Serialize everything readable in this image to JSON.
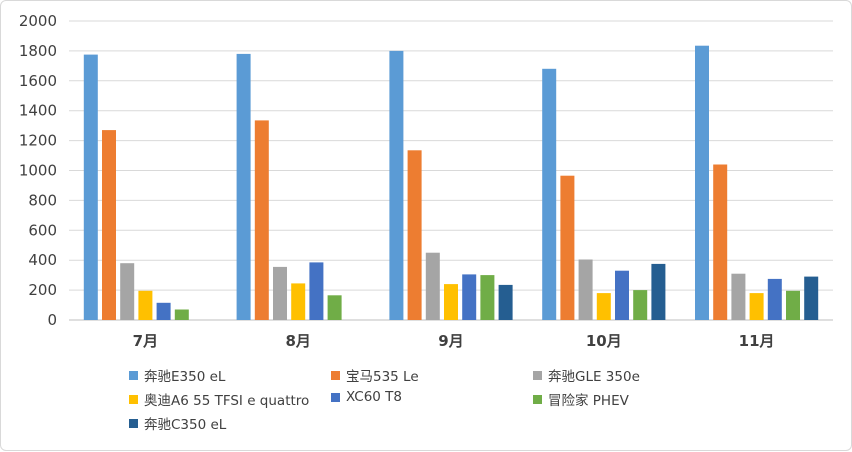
{
  "chart_data": {
    "type": "bar",
    "title": "",
    "xlabel": "",
    "ylabel": "",
    "ylim": [
      0,
      2000
    ],
    "y_ticks": [
      "0",
      "200",
      "400",
      "600",
      "800",
      "1000",
      "1200",
      "1400",
      "1600",
      "1800",
      "2000"
    ],
    "grid": true,
    "legend_position": "bottom",
    "categories": [
      "7月",
      "8月",
      "9月",
      "10月",
      "11月"
    ],
    "series": [
      {
        "name": "奔驰E350 eL",
        "color": "#5b9bd5",
        "values": [
          1775,
          1780,
          1800,
          1680,
          1835
        ]
      },
      {
        "name": "宝马535 Le",
        "color": "#ed7d31",
        "values": [
          1270,
          1335,
          1135,
          965,
          1040
        ]
      },
      {
        "name": "奔驰GLE 350e",
        "color": "#a5a5a5",
        "values": [
          380,
          355,
          450,
          405,
          310
        ]
      },
      {
        "name": "奥迪A6 55 TFSI e quattro",
        "color": "#ffc000",
        "values": [
          195,
          245,
          240,
          180,
          180
        ]
      },
      {
        "name": "XC60 T8",
        "color": "#4472c4",
        "values": [
          115,
          385,
          305,
          330,
          275
        ]
      },
      {
        "name": "冒险家 PHEV",
        "color": "#70ad47",
        "values": [
          70,
          165,
          300,
          200,
          195
        ]
      },
      {
        "name": "奔驰C350 eL",
        "color": "#255e91",
        "values": [
          null,
          null,
          235,
          375,
          290
        ]
      }
    ]
  }
}
